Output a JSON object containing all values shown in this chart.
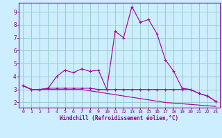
{
  "xlabel": "Windchill (Refroidissement éolien,°C)",
  "bg_color": "#cceeff",
  "line_color": "#aa00aa",
  "grid_color": "#99cccc",
  "axis_color": "#880088",
  "text_color": "#880088",
  "xlim": [
    -0.5,
    23.5
  ],
  "ylim": [
    1.6,
    9.7
  ],
  "xticks": [
    0,
    1,
    2,
    3,
    4,
    5,
    6,
    7,
    8,
    9,
    10,
    11,
    12,
    13,
    14,
    15,
    16,
    17,
    18,
    19,
    20,
    21,
    22,
    23
  ],
  "yticks": [
    2,
    3,
    4,
    5,
    6,
    7,
    8,
    9
  ],
  "series1_x": [
    0,
    1,
    2,
    3,
    4,
    5,
    6,
    7,
    8,
    9,
    10,
    11,
    12,
    13,
    14,
    15,
    16,
    17,
    18,
    19,
    20,
    21,
    22,
    23
  ],
  "series1_y": [
    3.3,
    3.0,
    3.0,
    3.1,
    4.0,
    4.5,
    4.3,
    4.6,
    4.4,
    4.5,
    3.0,
    7.5,
    7.0,
    9.4,
    8.2,
    8.4,
    7.3,
    5.3,
    4.4,
    3.1,
    3.0,
    2.7,
    2.5,
    2.1
  ],
  "series2_x": [
    0,
    1,
    2,
    3,
    4,
    5,
    6,
    7,
    8,
    9,
    10,
    11,
    12,
    13,
    14,
    15,
    16,
    17,
    18,
    19,
    20,
    21,
    22,
    23
  ],
  "series2_y": [
    3.3,
    3.0,
    3.0,
    3.1,
    3.1,
    3.1,
    3.1,
    3.1,
    3.1,
    3.0,
    3.0,
    3.0,
    3.0,
    3.0,
    3.0,
    3.0,
    3.0,
    3.0,
    3.0,
    3.0,
    3.0,
    2.7,
    2.5,
    2.1
  ],
  "series3_x": [
    0,
    1,
    2,
    3,
    4,
    5,
    6,
    7,
    8,
    9,
    10,
    11,
    12,
    13,
    14,
    15,
    16,
    17,
    18,
    19,
    20,
    21,
    22,
    23
  ],
  "series3_y": [
    3.3,
    3.0,
    3.0,
    3.0,
    3.0,
    3.0,
    3.0,
    3.0,
    2.9,
    2.8,
    2.7,
    2.6,
    2.5,
    2.4,
    2.3,
    2.2,
    2.1,
    2.0,
    1.95,
    1.9,
    1.85,
    1.8,
    1.75,
    1.7
  ]
}
